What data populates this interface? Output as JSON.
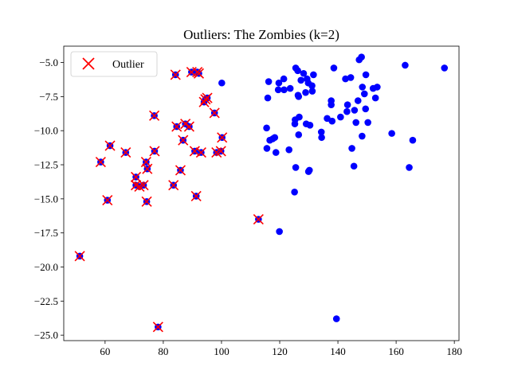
{
  "chart_data": {
    "type": "scatter",
    "title": "Outliers: The Zombies (k=2)",
    "xlabel": "",
    "ylabel": "",
    "xlim": [
      45.8,
      181.6
    ],
    "ylim": [
      -25.4,
      -3.8
    ],
    "xticks": [
      60,
      80,
      100,
      120,
      140,
      160,
      180
    ],
    "yticks": [
      -5.0,
      -7.5,
      -10.0,
      -12.5,
      -15.0,
      -17.5,
      -20.0,
      -22.5,
      -25.0
    ],
    "xtick_labels": [
      "60",
      "80",
      "100",
      "120",
      "140",
      "160",
      "180"
    ],
    "ytick_labels": [
      "−5.0",
      "−7.5",
      "−10.0",
      "−12.5",
      "−15.0",
      "−17.5",
      "−20.0",
      "−22.5",
      "−25.0"
    ],
    "grid": false,
    "legend": {
      "position": "upper-left",
      "entries": [
        "Outlier"
      ]
    },
    "colors": {
      "points": "#0000ff",
      "outlier_marker": "#ff0000"
    },
    "series": [
      {
        "name": "",
        "marker": "circle",
        "color": "#0000ff",
        "points": [
          [
            51.3,
            -19.2
          ],
          [
            58.5,
            -12.3
          ],
          [
            60.8,
            -15.1
          ],
          [
            61.7,
            -11.1
          ],
          [
            67.1,
            -11.6
          ],
          [
            70.6,
            -13.4
          ],
          [
            70.6,
            -14.0
          ],
          [
            71.8,
            -14.1
          ],
          [
            73.2,
            -14.0
          ],
          [
            74.1,
            -12.3
          ],
          [
            74.5,
            -12.8
          ],
          [
            74.3,
            -15.2
          ],
          [
            77.0,
            -11.5
          ],
          [
            76.9,
            -8.9
          ],
          [
            78.2,
            -24.4
          ],
          [
            83.5,
            -14.0
          ],
          [
            84.2,
            -5.9
          ],
          [
            84.6,
            -9.7
          ],
          [
            85.9,
            -12.9
          ],
          [
            86.8,
            -10.7
          ],
          [
            87.6,
            -9.5
          ],
          [
            88.9,
            -9.7
          ],
          [
            89.7,
            -5.7
          ],
          [
            90.8,
            -11.5
          ],
          [
            91.3,
            -14.8
          ],
          [
            91.7,
            -5.7
          ],
          [
            92.2,
            -5.8
          ],
          [
            93.0,
            -11.6
          ],
          [
            94.0,
            -7.9
          ],
          [
            94.5,
            -7.7
          ],
          [
            95.1,
            -7.6
          ],
          [
            97.6,
            -8.7
          ],
          [
            98.3,
            -11.6
          ],
          [
            99.8,
            -11.5
          ],
          [
            100.2,
            -10.5
          ],
          [
            112.7,
            -16.5
          ],
          [
            100.1,
            -6.5
          ],
          [
            115.5,
            -9.8
          ],
          [
            115.6,
            -11.3
          ],
          [
            115.9,
            -7.6
          ],
          [
            116.2,
            -6.4
          ],
          [
            116.6,
            -10.7
          ],
          [
            117.6,
            -10.6
          ],
          [
            118.3,
            -10.5
          ],
          [
            118.7,
            -11.6
          ],
          [
            119.5,
            -7.0
          ],
          [
            119.7,
            -6.5
          ],
          [
            119.9,
            -17.4
          ],
          [
            121.4,
            -6.2
          ],
          [
            121.5,
            -7.0
          ],
          [
            123.2,
            -11.4
          ],
          [
            123.6,
            -6.9
          ],
          [
            125.2,
            -9.5
          ],
          [
            125.3,
            -9.2
          ],
          [
            125.1,
            -14.5
          ],
          [
            125.5,
            -12.7
          ],
          [
            125.5,
            -5.4
          ],
          [
            126.2,
            -5.6
          ],
          [
            126.3,
            -7.4
          ],
          [
            126.5,
            -7.5
          ],
          [
            126.5,
            -10.3
          ],
          [
            126.7,
            -9.0
          ],
          [
            127.3,
            -6.3
          ],
          [
            128.2,
            -5.8
          ],
          [
            128.9,
            -7.2
          ],
          [
            129.1,
            -9.5
          ],
          [
            129.4,
            -6.2
          ],
          [
            129.8,
            -6.5
          ],
          [
            129.9,
            -13.0
          ],
          [
            130.2,
            -12.9
          ],
          [
            130.4,
            -9.6
          ],
          [
            131.1,
            -6.7
          ],
          [
            131.2,
            -7.1
          ],
          [
            131.6,
            -5.9
          ],
          [
            134.3,
            -10.1
          ],
          [
            134.4,
            -10.5
          ],
          [
            136.3,
            -9.1
          ],
          [
            137.7,
            -7.8
          ],
          [
            137.7,
            -8.1
          ],
          [
            138.0,
            -9.3
          ],
          [
            138.6,
            -5.4
          ],
          [
            139.5,
            -23.8
          ],
          [
            140.9,
            -9.0
          ],
          [
            142.6,
            -6.2
          ],
          [
            143.1,
            -8.6
          ],
          [
            143.3,
            -8.1
          ],
          [
            144.4,
            -6.1
          ],
          [
            144.8,
            -11.3
          ],
          [
            145.5,
            -12.6
          ],
          [
            145.7,
            -8.5
          ],
          [
            146.2,
            -9.4
          ],
          [
            146.9,
            -7.8
          ],
          [
            147.3,
            -4.8
          ],
          [
            148.1,
            -4.6
          ],
          [
            148.3,
            -10.4
          ],
          [
            148.4,
            -6.8
          ],
          [
            149.1,
            -7.3
          ],
          [
            149.6,
            -5.9
          ],
          [
            149.5,
            -8.4
          ],
          [
            150.3,
            -9.4
          ],
          [
            152.1,
            -6.9
          ],
          [
            152.9,
            -7.6
          ],
          [
            153.5,
            -6.8
          ],
          [
            158.5,
            -10.2
          ],
          [
            163.1,
            -5.2
          ],
          [
            164.5,
            -12.7
          ],
          [
            165.7,
            -10.7
          ],
          [
            176.6,
            -5.4
          ]
        ]
      },
      {
        "name": "Outlier",
        "marker": "x",
        "color": "#ff0000",
        "points": [
          [
            51.3,
            -19.2
          ],
          [
            58.5,
            -12.3
          ],
          [
            60.8,
            -15.1
          ],
          [
            61.7,
            -11.1
          ],
          [
            67.1,
            -11.6
          ],
          [
            70.6,
            -13.4
          ],
          [
            70.6,
            -14.0
          ],
          [
            71.8,
            -14.1
          ],
          [
            73.2,
            -14.0
          ],
          [
            74.1,
            -12.3
          ],
          [
            74.5,
            -12.8
          ],
          [
            74.3,
            -15.2
          ],
          [
            77.0,
            -11.5
          ],
          [
            76.9,
            -8.9
          ],
          [
            78.2,
            -24.4
          ],
          [
            83.5,
            -14.0
          ],
          [
            84.2,
            -5.9
          ],
          [
            84.6,
            -9.7
          ],
          [
            85.9,
            -12.9
          ],
          [
            86.8,
            -10.7
          ],
          [
            87.6,
            -9.5
          ],
          [
            88.9,
            -9.7
          ],
          [
            89.7,
            -5.7
          ],
          [
            90.8,
            -11.5
          ],
          [
            91.3,
            -14.8
          ],
          [
            91.7,
            -5.7
          ],
          [
            92.2,
            -5.8
          ],
          [
            93.0,
            -11.6
          ],
          [
            94.0,
            -7.9
          ],
          [
            94.5,
            -7.7
          ],
          [
            95.1,
            -7.6
          ],
          [
            97.6,
            -8.7
          ],
          [
            98.3,
            -11.6
          ],
          [
            99.8,
            -11.5
          ],
          [
            100.2,
            -10.5
          ],
          [
            112.7,
            -16.5
          ]
        ]
      }
    ]
  }
}
